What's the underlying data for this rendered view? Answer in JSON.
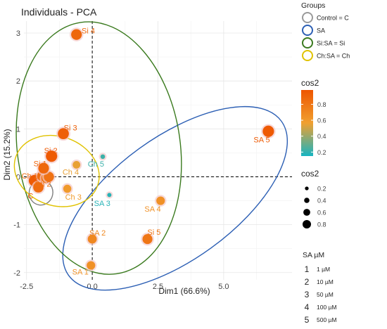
{
  "chart_data": {
    "type": "scatter",
    "title": "Individuals - PCA",
    "xlabel": "Dim1 (66.6%)",
    "ylabel": "Dim2 (15.2%)",
    "xlim": [
      -2.6,
      7.6
    ],
    "ylim": [
      -2.15,
      3.25
    ],
    "xticks": [
      -2.5,
      0.0,
      2.5,
      5.0
    ],
    "xtick_labels": [
      "-2.5",
      "0.0",
      "2.5",
      "5.0"
    ],
    "yticks": [
      -2,
      -1,
      0,
      1,
      2,
      3
    ],
    "ytick_labels": [
      "-2",
      "-1",
      "0",
      "1",
      "2",
      "3"
    ],
    "grid": true,
    "points": [
      {
        "label": "C",
        "x": -2.2,
        "y": -0.08,
        "cos2": 0.95,
        "lx": -2.35,
        "ly": -0.4
      },
      {
        "label": "",
        "x": -2.05,
        "y": -0.22,
        "cos2": 0.85,
        "lx": 0,
        "ly": 0
      },
      {
        "label": "Ch 1",
        "x": -1.9,
        "y": 0.02,
        "cos2": 0.85,
        "lx": -2.38,
        "ly": 0.02
      },
      {
        "label": "",
        "x": -1.75,
        "y": -0.03,
        "cos2": 0.8,
        "lx": 0,
        "ly": 0
      },
      {
        "label": "Ch 2",
        "x": -1.65,
        "y": 0.0,
        "cos2": 0.82,
        "lx": -1.88,
        "ly": -0.15
      },
      {
        "label": "Si 1",
        "x": -1.85,
        "y": 0.18,
        "cos2": 0.88,
        "lx": -1.98,
        "ly": 0.28
      },
      {
        "label": "Si 2",
        "x": -1.55,
        "y": 0.43,
        "cos2": 0.95,
        "lx": -1.58,
        "ly": 0.55
      },
      {
        "label": "Si 3",
        "x": -1.1,
        "y": 0.9,
        "cos2": 0.92,
        "lx": -0.83,
        "ly": 1.03
      },
      {
        "label": "Si 4",
        "x": -0.6,
        "y": 2.97,
        "cos2": 0.88,
        "lx": -0.15,
        "ly": 3.05
      },
      {
        "label": "Ch 3",
        "x": -0.95,
        "y": -0.25,
        "cos2": 0.6,
        "lx": -0.72,
        "ly": -0.42
      },
      {
        "label": "Ch 4",
        "x": -0.6,
        "y": 0.25,
        "cos2": 0.55,
        "lx": -0.82,
        "ly": 0.1
      },
      {
        "label": "Ch 5",
        "x": 0.4,
        "y": 0.42,
        "cos2": 0.22,
        "lx": 0.14,
        "ly": 0.27
      },
      {
        "label": "SA 3",
        "x": 0.65,
        "y": -0.38,
        "cos2": 0.18,
        "lx": 0.38,
        "ly": -0.55
      },
      {
        "label": "SA 4",
        "x": 2.6,
        "y": -0.5,
        "cos2": 0.65,
        "lx": 2.3,
        "ly": -0.67
      },
      {
        "label": "SA 2",
        "x": 0.0,
        "y": -1.3,
        "cos2": 0.7,
        "lx": 0.2,
        "ly": -1.17
      },
      {
        "label": "Si 5",
        "x": 2.1,
        "y": -1.3,
        "cos2": 0.8,
        "lx": 2.35,
        "ly": -1.15
      },
      {
        "label": "SA 1",
        "x": -0.05,
        "y": -1.85,
        "cos2": 0.65,
        "lx": -0.45,
        "ly": -1.98
      },
      {
        "label": "SA 5",
        "x": 6.7,
        "y": 0.95,
        "cos2": 0.95,
        "lx": 6.45,
        "ly": 0.78
      }
    ],
    "ellipses": [
      {
        "group": "Control = C",
        "color": "#808080",
        "cx": -1.95,
        "cy": -0.33,
        "rx": 0.45,
        "ry": 0.26,
        "rot": 10
      },
      {
        "group": "SA",
        "color": "#2c5fb4",
        "cx": 3.15,
        "cy": -0.45,
        "rx": 5.0,
        "ry": 1.28,
        "rot": -36
      },
      {
        "group": "Si:SA = Si",
        "color": "#3a7a1e",
        "cx": 0.25,
        "cy": 0.6,
        "rx": 3.1,
        "ry": 2.65,
        "rot": -8
      },
      {
        "group": "Ch:SA = Ch",
        "color": "#e0c200",
        "cx": -1.35,
        "cy": 0.12,
        "rx": 1.65,
        "ry": 0.72,
        "rot": 20
      }
    ],
    "legend_groups_title": "Groups",
    "legend_groups": [
      {
        "label": "Control = C",
        "color": "#9a9a9a"
      },
      {
        "label": "SA",
        "color": "#2c5fb4"
      },
      {
        "label": "Si:SA = Si",
        "color": "#3a7a1e"
      },
      {
        "label": "Ch:SA = Ch",
        "color": "#e0c200"
      }
    ],
    "colorbar_title": "cos2",
    "colorbar_ticks": [
      "0.8",
      "0.6",
      "0.4",
      "0.2"
    ],
    "colorbar_range": [
      0.15,
      0.98
    ],
    "colors": {
      "low": "#17b4c2",
      "mid": "#f0a030",
      "high": "#ee5500",
      "axis_line": "#000000",
      "grid": "#e6e6e6"
    },
    "size_legend_title": "cos2",
    "size_legend_ticks": [
      "0.2",
      "0.4",
      "0.6",
      "0.8"
    ],
    "sa_legend_title": "SA µM",
    "sa_legend": [
      {
        "num": "1",
        "label": "1 µM"
      },
      {
        "num": "2",
        "label": "10 µM"
      },
      {
        "num": "3",
        "label": "50 µM"
      },
      {
        "num": "4",
        "label": "100 µM"
      },
      {
        "num": "5",
        "label": "500 µM"
      }
    ]
  }
}
